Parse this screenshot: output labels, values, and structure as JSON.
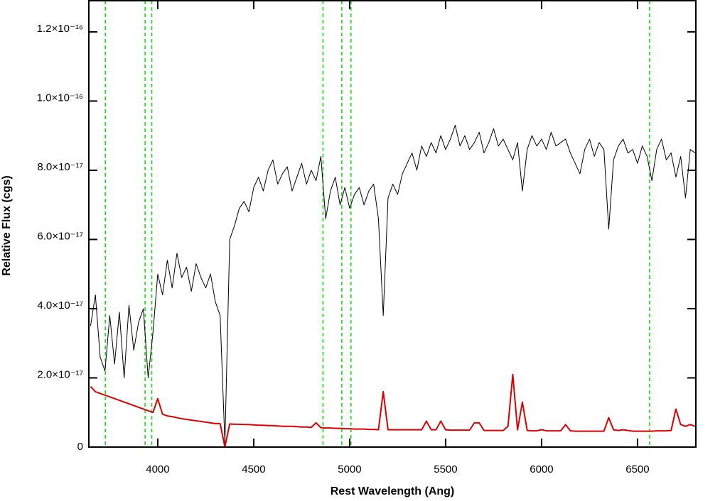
{
  "chart_data": {
    "type": "line",
    "x_label": "Rest Wavelength (Ang)",
    "y_label": "Relative Flux (cgs)",
    "xlim": [
      3641,
      6804
    ],
    "ylim": [
      0,
      1.29e-16
    ],
    "xticks": [
      4000,
      4500,
      5000,
      5500,
      6000,
      6500
    ],
    "yticks": [
      0,
      {
        "value": 2e-17,
        "label": "2.0×10⁻¹⁷"
      },
      {
        "value": 4e-17,
        "label": "4.0×10⁻¹⁷"
      },
      {
        "value": 6e-17,
        "label": "6.0×10⁻¹⁷"
      },
      {
        "value": 8e-17,
        "label": "8.0×10⁻¹⁷"
      },
      {
        "value": 1e-16,
        "label": "1.0×10⁻¹⁶"
      },
      {
        "value": 1.2e-16,
        "label": "1.2×10⁻¹⁶"
      }
    ],
    "reference_lines": {
      "color": "#00e000",
      "x": [
        3727,
        3934,
        3969,
        4861,
        4959,
        5007,
        6563
      ]
    },
    "x": [
      3650,
      3675,
      3700,
      3725,
      3750,
      3775,
      3800,
      3825,
      3850,
      3875,
      3900,
      3925,
      3950,
      3975,
      4000,
      4025,
      4050,
      4075,
      4100,
      4125,
      4150,
      4175,
      4200,
      4225,
      4250,
      4275,
      4300,
      4325,
      4350,
      4375,
      4400,
      4425,
      4450,
      4475,
      4500,
      4525,
      4550,
      4575,
      4600,
      4625,
      4650,
      4675,
      4700,
      4725,
      4750,
      4775,
      4800,
      4825,
      4850,
      4875,
      4900,
      4925,
      4950,
      4975,
      5000,
      5025,
      5050,
      5075,
      5100,
      5125,
      5150,
      5175,
      5200,
      5225,
      5250,
      5275,
      5300,
      5325,
      5350,
      5375,
      5400,
      5425,
      5450,
      5475,
      5500,
      5525,
      5550,
      5575,
      5600,
      5625,
      5650,
      5675,
      5700,
      5725,
      5750,
      5775,
      5800,
      5825,
      5850,
      5875,
      5900,
      5925,
      5950,
      5975,
      6000,
      6025,
      6050,
      6075,
      6100,
      6125,
      6150,
      6175,
      6200,
      6225,
      6250,
      6275,
      6300,
      6325,
      6350,
      6375,
      6400,
      6425,
      6450,
      6475,
      6500,
      6525,
      6550,
      6575,
      6600,
      6625,
      6650,
      6675,
      6700,
      6725,
      6750,
      6775,
      6800
    ],
    "series": [
      {
        "color": "#000000",
        "width": 1,
        "values": [
          3.5e-17,
          4.4e-17,
          2.6e-17,
          2.2e-17,
          3.8e-17,
          2.4e-17,
          3.9e-17,
          2e-17,
          4.1e-17,
          2.8e-17,
          3.6e-17,
          4e-17,
          2e-17,
          3.3e-17,
          5e-17,
          4.4e-17,
          5.4e-17,
          4.6e-17,
          5.6e-17,
          4.9e-17,
          5.2e-17,
          4.5e-17,
          5.3e-17,
          4.9e-17,
          4.6e-17,
          5e-17,
          4.2e-17,
          3.8e-17,
          1e-18,
          6e-17,
          6.4e-17,
          6.9e-17,
          7.1e-17,
          6.8e-17,
          7.5e-17,
          7.8e-17,
          7.4e-17,
          8e-17,
          8.3e-17,
          7.6e-17,
          7.9e-17,
          8.1e-17,
          7.4e-17,
          7.8e-17,
          8.2e-17,
          7.6e-17,
          8e-17,
          7.7e-17,
          8.4e-17,
          6.6e-17,
          7.4e-17,
          7.8e-17,
          7e-17,
          7.5e-17,
          6.9e-17,
          7.3e-17,
          7.5e-17,
          7e-17,
          7.4e-17,
          7.6e-17,
          6.6e-17,
          3.8e-17,
          7.2e-17,
          7.6e-17,
          7.3e-17,
          7.9e-17,
          8.2e-17,
          8.5e-17,
          8e-17,
          8.7e-17,
          8.4e-17,
          8.8e-17,
          8.5e-17,
          9e-17,
          8.6e-17,
          8.9e-17,
          9.3e-17,
          8.7e-17,
          9e-17,
          8.6e-17,
          8.8e-17,
          9.1e-17,
          8.5e-17,
          8.8e-17,
          9.2e-17,
          8.7e-17,
          8.9e-17,
          8.6e-17,
          8.3e-17,
          8.8e-17,
          7.4e-17,
          8.6e-17,
          9e-17,
          8.7e-17,
          8.9e-17,
          8.6e-17,
          9.1e-17,
          8.7e-17,
          8.8e-17,
          8.9e-17,
          8.5e-17,
          8.2e-17,
          7.9e-17,
          8.6e-17,
          8.9e-17,
          8.4e-17,
          8.8e-17,
          8.6e-17,
          6.3e-17,
          8.3e-17,
          8.7e-17,
          8.9e-17,
          8.5e-17,
          8.6e-17,
          8.2e-17,
          8.7e-17,
          8.4e-17,
          7.7e-17,
          8.6e-17,
          8.9e-17,
          8.3e-17,
          8.5e-17,
          7.8e-17,
          8.4e-17,
          7.2e-17,
          8.6e-17,
          8.5e-17
        ]
      },
      {
        "color": "#dd0000",
        "width": 2,
        "values": [
          1.75e-17,
          1.6e-17,
          1.55e-17,
          1.5e-17,
          1.45e-17,
          1.4e-17,
          1.35e-17,
          1.3e-17,
          1.25e-17,
          1.2e-17,
          1.15e-17,
          1.1e-17,
          1.05e-17,
          1e-17,
          1.4e-17,
          9.5e-18,
          9e-18,
          8.8e-18,
          8.5e-18,
          8.2e-18,
          8e-18,
          7.8e-18,
          7.6e-18,
          7.4e-18,
          7.2e-18,
          7e-18,
          6.8e-18,
          6.8e-18,
          0,
          6.7e-18,
          6.6e-18,
          6.6e-18,
          6.5e-18,
          6.5e-18,
          6.4e-18,
          6.3e-18,
          6.3e-18,
          6.2e-18,
          6.2e-18,
          6.1e-18,
          6e-18,
          6e-18,
          6e-18,
          5.9e-18,
          5.8e-18,
          5.8e-18,
          5.7e-18,
          7e-18,
          5.6e-18,
          5.5e-18,
          5.5e-18,
          5.4e-18,
          5.4e-18,
          5.3e-18,
          5.3e-18,
          5.2e-18,
          5.2e-18,
          5.2e-18,
          5.1e-18,
          5.1e-18,
          5e-18,
          1.6e-17,
          5e-18,
          5e-18,
          5e-18,
          5e-18,
          5e-18,
          5e-18,
          5e-18,
          5e-18,
          7.5e-18,
          5e-18,
          5e-18,
          7.5e-18,
          5e-18,
          4.9e-18,
          4.9e-18,
          4.9e-18,
          4.9e-18,
          4.9e-18,
          7e-18,
          7e-18,
          4.8e-18,
          4.8e-18,
          4.8e-18,
          4.8e-18,
          4.8e-18,
          6e-18,
          2.1e-17,
          5e-18,
          1.3e-17,
          4.8e-18,
          4.7e-18,
          4.7e-18,
          5e-18,
          4.7e-18,
          4.7e-18,
          4.7e-18,
          4.7e-18,
          6.5e-18,
          4.7e-18,
          4.6e-18,
          4.6e-18,
          4.6e-18,
          4.6e-18,
          4.6e-18,
          4.6e-18,
          4.6e-18,
          8.5e-18,
          5e-18,
          4.8e-18,
          5e-18,
          4.8e-18,
          4.6e-18,
          4.6e-18,
          4.6e-18,
          4.6e-18,
          4.6e-18,
          4.7e-18,
          4.7e-18,
          4.7e-18,
          4.8e-18,
          1.1e-17,
          6.5e-18,
          6e-18,
          6.5e-18,
          6e-18
        ]
      }
    ]
  }
}
